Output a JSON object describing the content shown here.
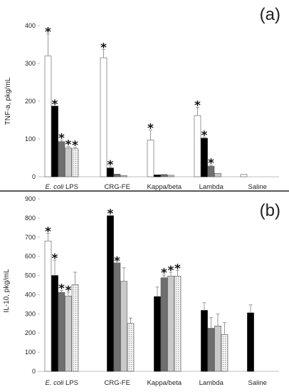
{
  "colors": {
    "black_bar": "#000000",
    "dark_gray_bar": "#6f6f6f",
    "light_gray_bar": "#c9c9c9",
    "white_bar": "#ffffff",
    "dotted_bar": "#e6e6e6",
    "outline": "#555555",
    "error_bar": "#999999",
    "divider": "#222222",
    "axis": "#bfbfbf"
  },
  "chart_data": [
    {
      "type": "bar",
      "panel_label": "(a)",
      "ylabel": "TNF-a, pkg/mL",
      "ylim": [
        0,
        400
      ],
      "yticks": [
        "0",
        "100",
        "200",
        "300",
        "400"
      ],
      "categories": [
        "E. coli LPS",
        "CRG-FE",
        "Kappa/beta",
        "Lambda",
        "Saline"
      ],
      "category_display": [
        {
          "italic": "E. coli",
          "rest": " LPS"
        },
        {
          "italic": "",
          "rest": "CRG-FE"
        },
        {
          "italic": "",
          "rest": "Kappa/beta"
        },
        {
          "italic": "",
          "rest": "Lambda"
        },
        {
          "italic": "",
          "rest": "Saline"
        }
      ],
      "series_styles": [
        "white",
        "black",
        "dark_gray",
        "light_gray",
        "dotted"
      ],
      "groups": [
        {
          "values": [
            320,
            187,
            93,
            76,
            74
          ],
          "errors": [
            58,
            0,
            4,
            4,
            4
          ],
          "stars": [
            true,
            true,
            true,
            true,
            true
          ]
        },
        {
          "values": [
            315,
            23,
            7,
            3,
            null
          ],
          "errors": [
            22,
            3,
            0,
            0,
            0
          ],
          "stars": [
            true,
            true,
            false,
            false,
            false
          ]
        },
        {
          "values": [
            97,
            5,
            6,
            4,
            null
          ],
          "errors": [
            27,
            0,
            0,
            0,
            0
          ],
          "stars": [
            true,
            false,
            false,
            false,
            false
          ]
        },
        {
          "values": [
            162,
            102,
            28,
            9,
            null
          ],
          "errors": [
            22,
            3,
            3,
            0,
            0
          ],
          "stars": [
            true,
            true,
            true,
            false,
            false
          ]
        },
        {
          "values": [
            6,
            null,
            null,
            null,
            null
          ],
          "errors": [
            0,
            0,
            0,
            0,
            0
          ],
          "stars": [
            false,
            false,
            false,
            false,
            false
          ]
        }
      ],
      "star_symbol": "*"
    },
    {
      "type": "bar",
      "panel_label": "(b)",
      "ylabel": "IL-10, pkg/mL",
      "ylim": [
        0,
        900
      ],
      "yticks": [
        "0",
        "100",
        "200",
        "300",
        "400",
        "500",
        "600",
        "700",
        "800",
        "900"
      ],
      "categories": [
        "E. coli LPS",
        "CRG-FE",
        "Kappa/beta",
        "Lambda",
        "Saline"
      ],
      "category_display": [
        {
          "italic": "E. coli",
          "rest": " LPS"
        },
        {
          "italic": "",
          "rest": "CRG-FE"
        },
        {
          "italic": "",
          "rest": "Kappa/beta"
        },
        {
          "italic": "",
          "rest": "Lambda"
        },
        {
          "italic": "",
          "rest": "Saline"
        }
      ],
      "series_styles": [
        "white",
        "black",
        "dark_gray",
        "light_gray",
        "dotted"
      ],
      "groups": [
        {
          "values": [
            680,
            500,
            412,
            393,
            452
          ],
          "errors": [
            40,
            80,
            10,
            20,
            65
          ],
          "stars": [
            true,
            true,
            true,
            true,
            false
          ]
        },
        {
          "values": [
            null,
            812,
            566,
            470,
            250
          ],
          "errors": [
            0,
            0,
            0,
            70,
            28
          ],
          "stars": [
            false,
            true,
            true,
            false,
            false
          ]
        },
        {
          "values": [
            null,
            390,
            488,
            497,
            497
          ],
          "errors": [
            0,
            50,
            15,
            20,
            30
          ],
          "stars": [
            false,
            false,
            true,
            true,
            true
          ]
        },
        {
          "values": [
            null,
            318,
            225,
            237,
            192
          ],
          "errors": [
            0,
            40,
            55,
            62,
            62
          ],
          "stars": [
            false,
            false,
            false,
            false,
            false
          ]
        },
        {
          "values": [
            null,
            305,
            null,
            null,
            null
          ],
          "errors": [
            0,
            42,
            0,
            0,
            0
          ],
          "stars": [
            false,
            false,
            false,
            false,
            false
          ]
        }
      ],
      "star_symbol": "*"
    }
  ]
}
